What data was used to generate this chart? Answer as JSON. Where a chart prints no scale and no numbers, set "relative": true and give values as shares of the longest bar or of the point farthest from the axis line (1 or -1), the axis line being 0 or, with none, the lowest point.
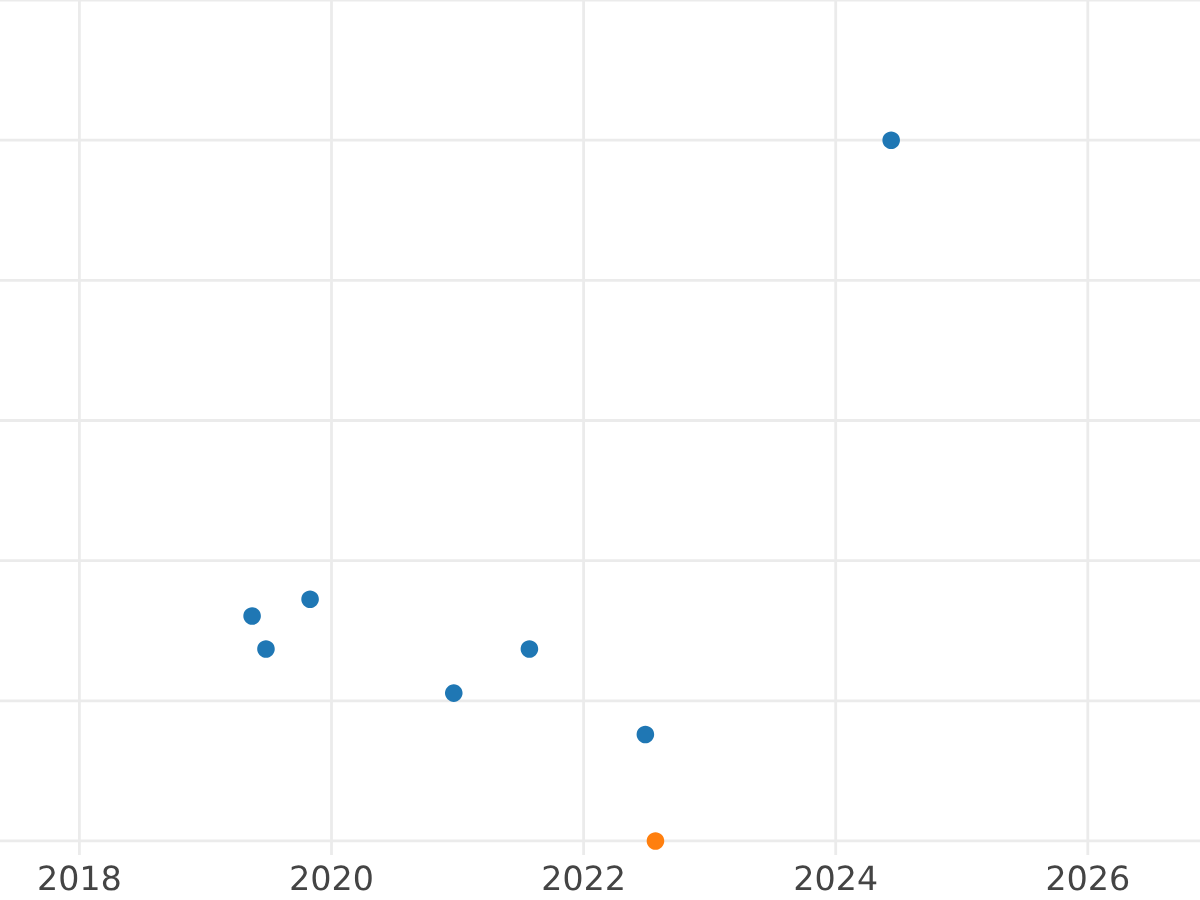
{
  "chart_data": {
    "type": "scatter",
    "relative": true,
    "xlim": [
      2017.37,
      2026.89
    ],
    "xticks": [
      2018,
      2020,
      2022,
      2024,
      2026
    ],
    "grid": true,
    "marker": "circle",
    "tick_labels": "x",
    "series": [
      {
        "color": "#1f77b4",
        "x": [
          2019.37,
          2019.48,
          2019.83,
          2020.97,
          2021.57,
          2022.49,
          2024.44
        ],
        "values": [
          0.321,
          0.274,
          0.345,
          0.211,
          0.274,
          0.152,
          1
        ]
      },
      {
        "color": "#ff7f0e",
        "x": [
          2022.57
        ],
        "values": [
          0
        ]
      }
    ]
  }
}
